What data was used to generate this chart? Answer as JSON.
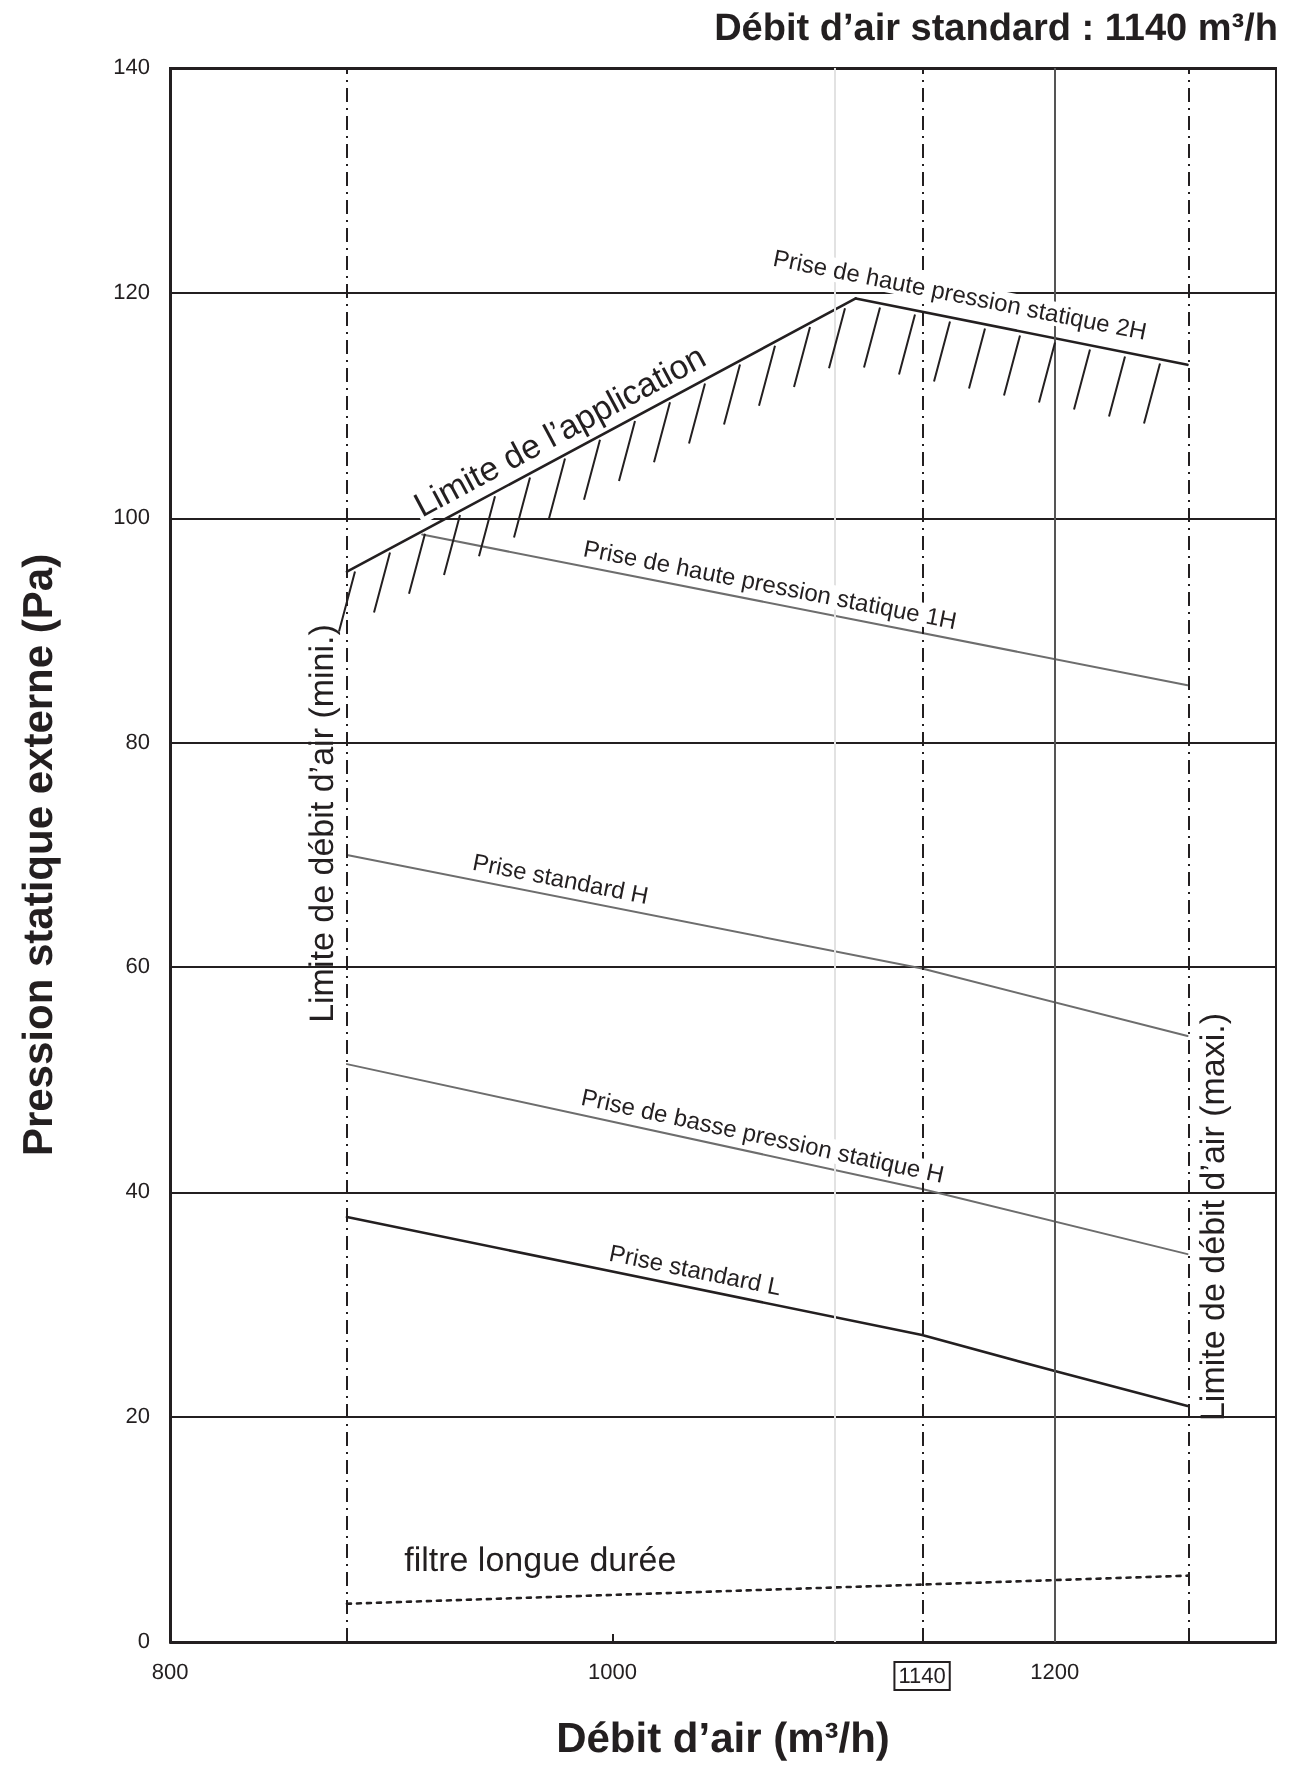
{
  "chart_data": {
    "type": "line",
    "title": "Débit d’air standard : 1140 m³/h",
    "xlabel": "Débit d’air (m³/h)",
    "ylabel": "Pression statique externe (Pa)",
    "xlim": [
      800,
      1300
    ],
    "xticks": [
      800,
      1000,
      1140,
      1200
    ],
    "ylim": [
      0,
      140
    ],
    "yticks": [
      0,
      20,
      40,
      60,
      80,
      100,
      120,
      140
    ],
    "grid": "y",
    "marker": "none",
    "series": [
      {
        "name": "Limite de l’application",
        "color": "#231f20",
        "x": [
          880,
          1110
        ],
        "values": [
          95.2,
          119.5
        ]
      },
      {
        "name": "Prise de haute pression statique 2H",
        "color": "#231f20",
        "x": [
          1110,
          1260
        ],
        "values": [
          119.5,
          113.6
        ]
      },
      {
        "name": "Prise de haute pression statique 1H",
        "color": "#6d6d6d",
        "x": [
          914,
          1260
        ],
        "values": [
          98.5,
          85.1
        ]
      },
      {
        "name": "Prise standard H",
        "color": "#6d6d6d",
        "x": [
          880,
          1140,
          1260
        ],
        "values": [
          70.0,
          59.9,
          53.9
        ]
      },
      {
        "name": "Prise de basse pression statique H",
        "color": "#6d6d6d",
        "x": [
          880,
          1140,
          1260
        ],
        "values": [
          51.4,
          40.3,
          34.5
        ]
      },
      {
        "name": "Prise standard L",
        "color": "#231f20",
        "x": [
          880,
          1140,
          1200,
          1260
        ],
        "values": [
          37.8,
          27.3,
          24.1,
          21.0
        ]
      },
      {
        "name": "filtre longue durée",
        "color": "#231f20",
        "line_style": "dotted",
        "x": [
          880,
          1260
        ],
        "values": [
          3.4,
          5.9
        ]
      }
    ],
    "ref_lines": [
      {
        "axis": "x",
        "value": 880,
        "label": "Limite de débit d’air (mini.)",
        "line_style": "dashed",
        "color": "#231f20"
      },
      {
        "axis": "x",
        "value": 1100,
        "line_style": "solid",
        "color": "#e2e2e2"
      },
      {
        "axis": "x",
        "value": 1140,
        "line_style": "dashed",
        "color": "#231f20"
      },
      {
        "axis": "x",
        "value": 1200,
        "line_style": "solid",
        "color": "#555555"
      },
      {
        "axis": "x",
        "value": 1260,
        "label": "Limite de débit d’air (maxi.)",
        "line_style": "dashed",
        "color": "#231f20"
      }
    ]
  }
}
